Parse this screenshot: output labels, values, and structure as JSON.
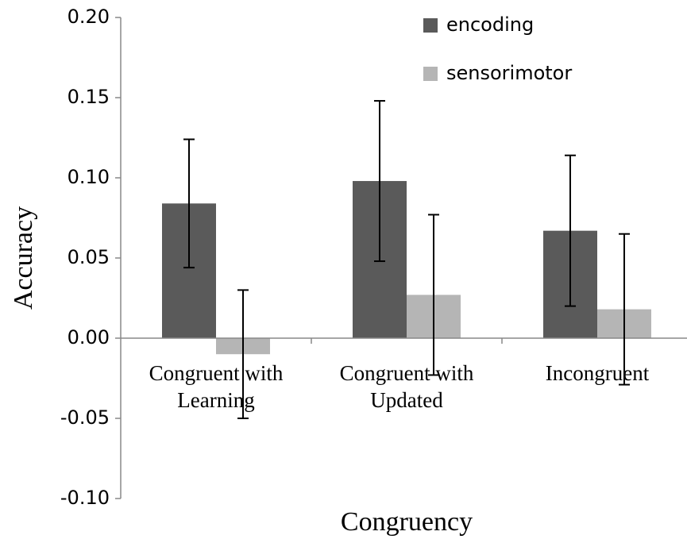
{
  "chart_data": {
    "type": "bar",
    "categories": [
      "Congruent with\nLearning",
      "Congruent with\nUpdated",
      "Incongruent"
    ],
    "series": [
      {
        "name": "encoding",
        "color": "#5a5a5a",
        "values": [
          0.084,
          0.098,
          0.067
        ],
        "errors": [
          0.04,
          0.05,
          0.047
        ]
      },
      {
        "name": "sensorimotor",
        "color": "#b5b5b5",
        "values": [
          -0.01,
          0.027,
          0.018
        ],
        "errors": [
          0.04,
          0.05,
          0.047
        ]
      }
    ],
    "xlabel": "Congruency",
    "ylabel": "Accuracy",
    "ylim": [
      -0.1,
      0.2
    ],
    "yticks": [
      {
        "value": -0.1,
        "label": "-0.10"
      },
      {
        "value": -0.05,
        "label": "-0.05"
      },
      {
        "value": 0,
        "label": "0.00"
      },
      {
        "value": 0.05,
        "label": "0.05"
      },
      {
        "value": 0.1,
        "label": "0.10"
      },
      {
        "value": 0.15,
        "label": "0.15"
      },
      {
        "value": 0.2,
        "label": "0.20"
      }
    ],
    "legend": "top-right",
    "grid": false
  }
}
